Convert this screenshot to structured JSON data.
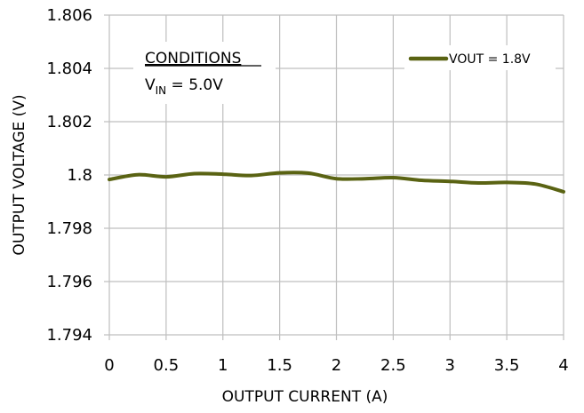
{
  "chart_data": {
    "type": "line",
    "title": "",
    "xlabel": "OUTPUT CURRENT (A)",
    "ylabel": "OUTPUT VOLTAGE (V)",
    "xlim": [
      0,
      4
    ],
    "ylim": [
      1.794,
      1.806
    ],
    "x_ticks": [
      "0",
      "0.5",
      "1",
      "1.5",
      "2",
      "2.5",
      "3",
      "3.5",
      "4"
    ],
    "y_ticks": [
      "1.794",
      "1.796",
      "1.798",
      "1.8",
      "1.802",
      "1.804",
      "1.806"
    ],
    "grid": true,
    "legend_position": "top-right",
    "series": [
      {
        "name": "VOUT = 1.8V",
        "color": "#5a6313",
        "x": [
          0,
          0.25,
          0.5,
          0.75,
          1.0,
          1.25,
          1.5,
          1.75,
          2.0,
          2.25,
          2.5,
          2.75,
          3.0,
          3.25,
          3.5,
          3.75,
          4.0
        ],
        "y": [
          1.79983,
          1.80001,
          1.79993,
          1.80005,
          1.80003,
          1.79998,
          1.80008,
          1.80007,
          1.79986,
          1.79986,
          1.7999,
          1.7998,
          1.79976,
          1.7997,
          1.79972,
          1.79966,
          1.79937
        ]
      }
    ],
    "annotation": {
      "heading": "CONDITIONS",
      "v_prefix": "V",
      "v_subscript": "IN",
      "v_value": " = 5.0V"
    }
  }
}
